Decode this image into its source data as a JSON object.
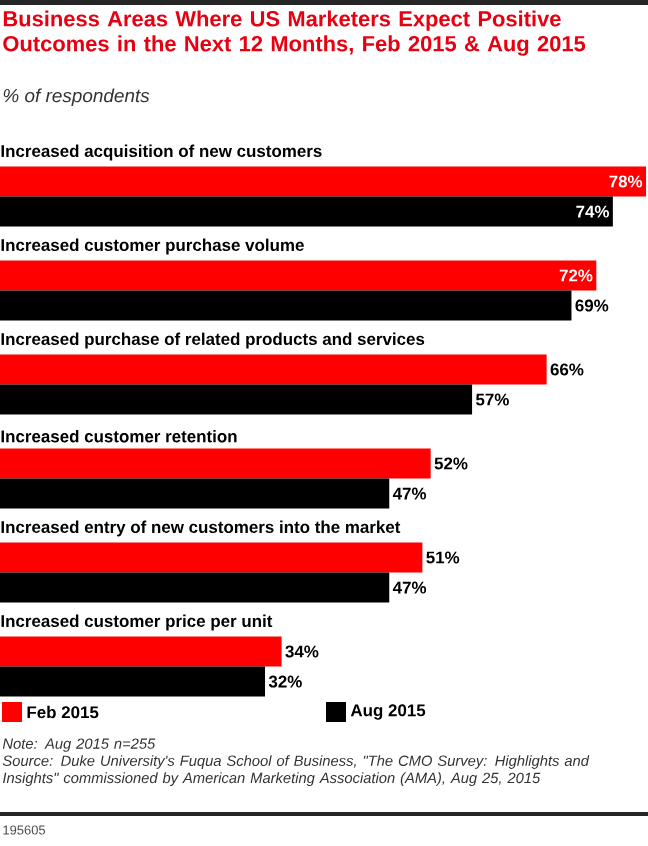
{
  "chart_data": {
    "type": "bar",
    "orientation": "horizontal",
    "title": "Business Areas Where US Marketers Expect Positive Outcomes in the Next 12 Months, Feb 2015 & Aug 2015",
    "subtitle": "% of respondents",
    "categories": [
      "Increased acquisition of new customers",
      "Increased customer purchase volume",
      "Increased purchase of related products and services",
      "Increased customer retention",
      "Increased entry of new customers into the market",
      "Increased customer price per unit"
    ],
    "series": [
      {
        "name": "Feb 2015",
        "color": "#ff0000",
        "values": [
          78,
          72,
          66,
          52,
          51,
          34
        ],
        "value_labels": [
          "78%",
          "72%",
          "66%",
          "52%",
          "51%",
          "34%"
        ]
      },
      {
        "name": "Aug 2015",
        "color": "#000000",
        "values": [
          74,
          69,
          57,
          47,
          47,
          32
        ],
        "value_labels": [
          "74%",
          "69%",
          "57%",
          "47%",
          "47%",
          "32%"
        ]
      }
    ],
    "legend": "bottom",
    "annotations": [
      "Note: Aug 2015 n=255",
      "Source: Duke University's Fuqua School of Business, \"The CMO Survey: Highlights and Insights\" commissioned by American Marketing Association (AMA), Aug 25, 2015",
      "195605"
    ]
  }
}
